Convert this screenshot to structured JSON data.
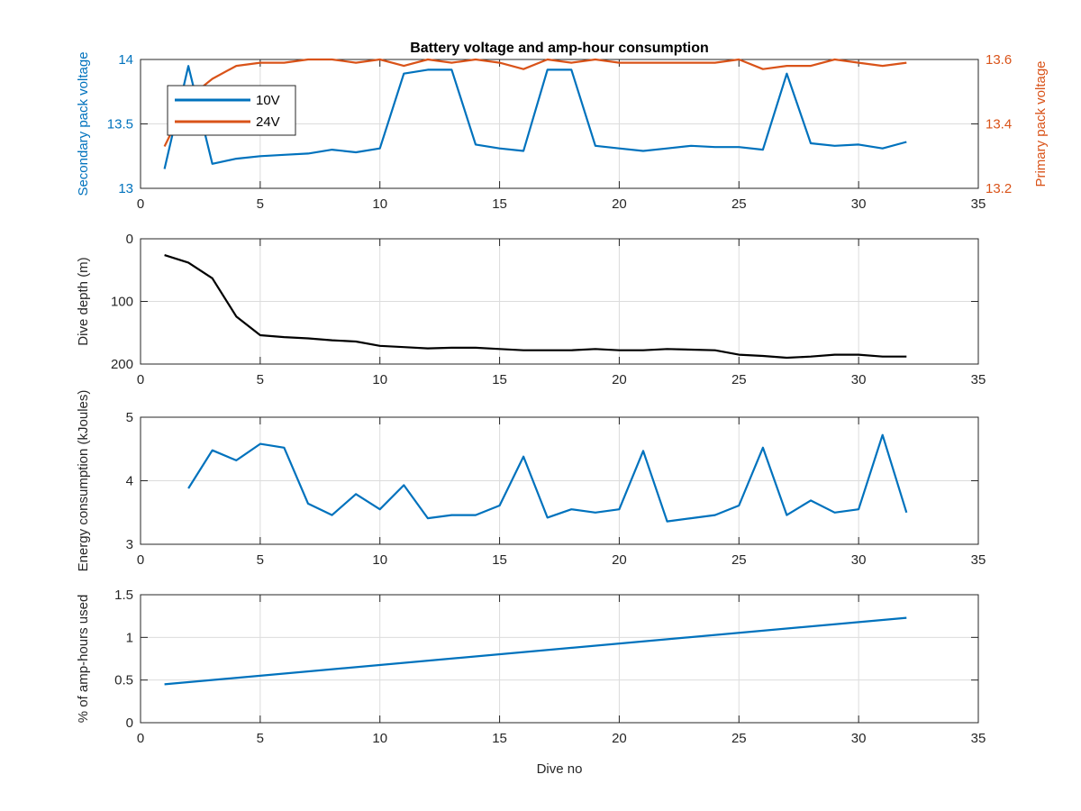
{
  "colors": {
    "series_blue": "#0072BD",
    "series_orange": "#D95319",
    "depth_line": "#000000",
    "axis_left_top": "#0072BD",
    "axis_right_top": "#D95319",
    "grid": "#dcdcdc",
    "axis": "#262626"
  },
  "chart_data": [
    {
      "type": "line",
      "title": "Battery voltage and amp-hour consumption",
      "xlabel": "",
      "ylabel_left": "Secondary pack voltage",
      "ylabel_right": "Primary pack voltage",
      "xlim": [
        0,
        35
      ],
      "x_ticks": [
        "0",
        "5",
        "10",
        "15",
        "20",
        "25",
        "30",
        "35"
      ],
      "ylim_left": [
        13,
        14
      ],
      "y_ticks_left": [
        "13",
        "13.5",
        "14"
      ],
      "ylim_right": [
        13.2,
        13.6
      ],
      "y_ticks_right": [
        "13.2",
        "13.4",
        "13.6"
      ],
      "grid": true,
      "legend": {
        "placement": "top-left",
        "entries": [
          "10V",
          "24V"
        ]
      },
      "series": [
        {
          "name": "10V",
          "axis": "left",
          "x": [
            1,
            2,
            3,
            4,
            5,
            6,
            7,
            8,
            9,
            10,
            11,
            12,
            13,
            14,
            15,
            16,
            17,
            18,
            19,
            20,
            21,
            22,
            23,
            24,
            25,
            26,
            27,
            28,
            29,
            30,
            31,
            32
          ],
          "values": [
            13.15,
            13.95,
            13.19,
            13.23,
            13.25,
            13.26,
            13.27,
            13.3,
            13.28,
            13.31,
            13.89,
            13.92,
            13.92,
            13.34,
            13.31,
            13.29,
            13.92,
            13.92,
            13.33,
            13.31,
            13.29,
            13.31,
            13.33,
            13.32,
            13.32,
            13.3,
            13.89,
            13.35,
            13.33,
            13.34,
            13.31,
            13.36
          ]
        },
        {
          "name": "24V",
          "axis": "right",
          "x": [
            1,
            2,
            3,
            4,
            5,
            6,
            7,
            8,
            9,
            10,
            11,
            12,
            13,
            14,
            15,
            16,
            17,
            18,
            19,
            20,
            21,
            22,
            23,
            24,
            25,
            26,
            27,
            28,
            29,
            30,
            31,
            32
          ],
          "values": [
            13.33,
            13.48,
            13.54,
            13.58,
            13.59,
            13.59,
            13.6,
            13.6,
            13.59,
            13.6,
            13.58,
            13.6,
            13.59,
            13.6,
            13.59,
            13.57,
            13.6,
            13.59,
            13.6,
            13.59,
            13.59,
            13.59,
            13.59,
            13.59,
            13.6,
            13.57,
            13.58,
            13.58,
            13.6,
            13.59,
            13.58,
            13.59
          ]
        }
      ]
    },
    {
      "type": "line",
      "title": "",
      "xlabel": "",
      "ylabel": "Dive depth (m)",
      "xlim": [
        0,
        35
      ],
      "x_ticks": [
        "0",
        "5",
        "10",
        "15",
        "20",
        "25",
        "30",
        "35"
      ],
      "ylim": [
        0,
        200
      ],
      "y_reversed": true,
      "y_ticks": [
        "0",
        "100",
        "200"
      ],
      "grid": true,
      "series": [
        {
          "x": [
            1,
            2,
            3,
            4,
            5,
            6,
            7,
            8,
            9,
            10,
            11,
            12,
            13,
            14,
            15,
            16,
            17,
            18,
            19,
            20,
            21,
            22,
            23,
            24,
            25,
            26,
            27,
            28,
            29,
            30,
            31,
            32
          ],
          "values": [
            26,
            38,
            63,
            124,
            154,
            157,
            159,
            162,
            164,
            171,
            173,
            175,
            174,
            174,
            176,
            178,
            178,
            178,
            176,
            178,
            178,
            176,
            177,
            178,
            185,
            187,
            190,
            188,
            185,
            185,
            188,
            188
          ]
        }
      ]
    },
    {
      "type": "line",
      "title": "",
      "xlabel": "",
      "ylabel": "Energy consumption (kJoules)",
      "xlim": [
        0,
        35
      ],
      "x_ticks": [
        "0",
        "5",
        "10",
        "15",
        "20",
        "25",
        "30",
        "35"
      ],
      "ylim": [
        3,
        5
      ],
      "y_ticks": [
        "3",
        "4",
        "5"
      ],
      "grid": true,
      "series": [
        {
          "x": [
            2,
            3,
            4,
            5,
            6,
            7,
            8,
            9,
            10,
            11,
            12,
            13,
            14,
            15,
            16,
            17,
            18,
            19,
            20,
            21,
            22,
            23,
            24,
            25,
            26,
            27,
            28,
            29,
            30,
            31,
            32
          ],
          "values": [
            3.88,
            4.48,
            4.32,
            4.58,
            4.52,
            3.64,
            3.46,
            3.79,
            3.55,
            3.93,
            3.41,
            3.46,
            3.46,
            3.61,
            4.38,
            3.42,
            3.55,
            3.5,
            3.55,
            4.47,
            3.36,
            3.41,
            3.46,
            3.61,
            4.52,
            3.46,
            3.69,
            3.5,
            3.55,
            4.72,
            3.5
          ]
        }
      ]
    },
    {
      "type": "line",
      "title": "",
      "xlabel": "Dive no",
      "ylabel": "% of amp-hours used",
      "xlim": [
        0,
        35
      ],
      "x_ticks": [
        "0",
        "5",
        "10",
        "15",
        "20",
        "25",
        "30",
        "35"
      ],
      "ylim": [
        0,
        1.5
      ],
      "y_ticks": [
        "0",
        "0.5",
        "1",
        "1.5"
      ],
      "grid": true,
      "series": [
        {
          "x": [
            1,
            32
          ],
          "values": [
            0.45,
            1.23
          ]
        }
      ]
    }
  ]
}
